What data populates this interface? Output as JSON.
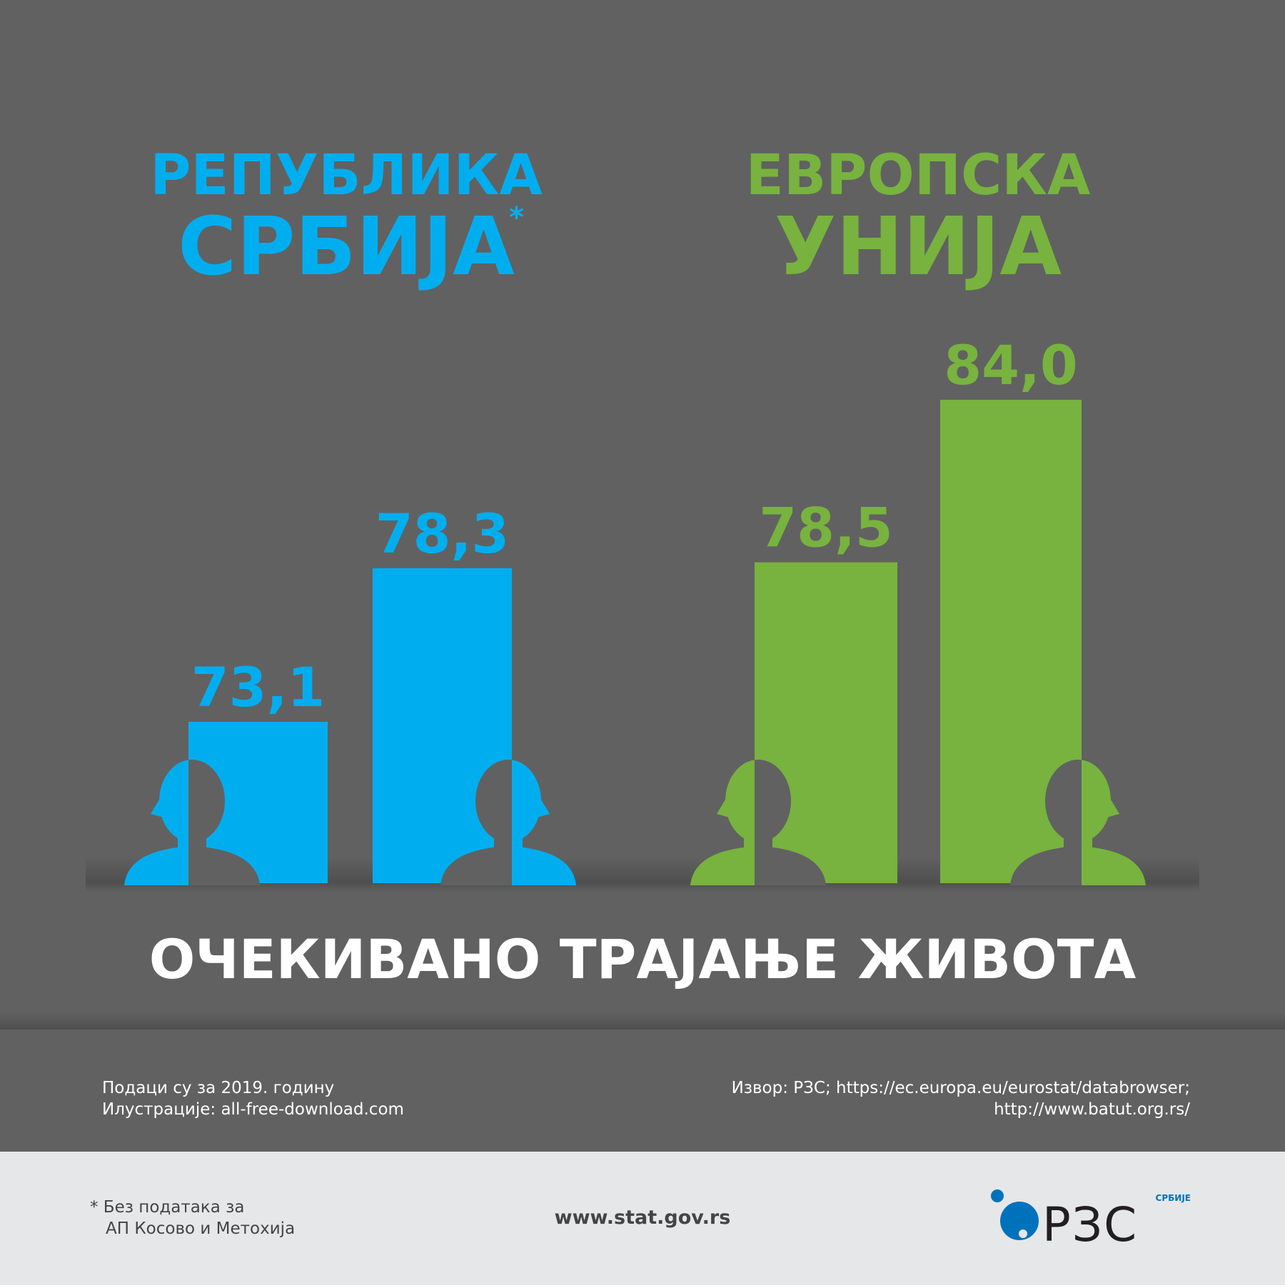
{
  "chart_data": {
    "type": "bar",
    "title": "ОЧЕКИВАНО ТРАЈАЊЕ ЖИВОТА",
    "series": [
      {
        "name_lines": [
          "РЕПУБЛИКА",
          "СРБИЈА"
        ],
        "name_mark": "*",
        "color": "#00aeef",
        "values": [
          73.1,
          78.3
        ],
        "value_labels": [
          "73,1",
          "78,3"
        ]
      },
      {
        "name_lines": [
          "ЕВРОПСКА",
          "УНИЈА"
        ],
        "color": "#77b33e",
        "values": [
          78.5,
          84.0
        ],
        "value_labels": [
          "78,5",
          "84,0"
        ]
      }
    ],
    "notes": [
      "Подаци су за 2019. годину",
      "Илустрације: all-free-download.com"
    ],
    "source": [
      "Извор: РЗС; https://ec.europa.eu/eurostat/databrowser;",
      "http://www.batut.org.rs/"
    ],
    "footnote": [
      "* Без података за",
      "АП Косово и Метохија"
    ],
    "website": "www.stat.gov.rs",
    "logo": {
      "text": "РЗС",
      "subtext": "СРБИЈЕ"
    }
  }
}
